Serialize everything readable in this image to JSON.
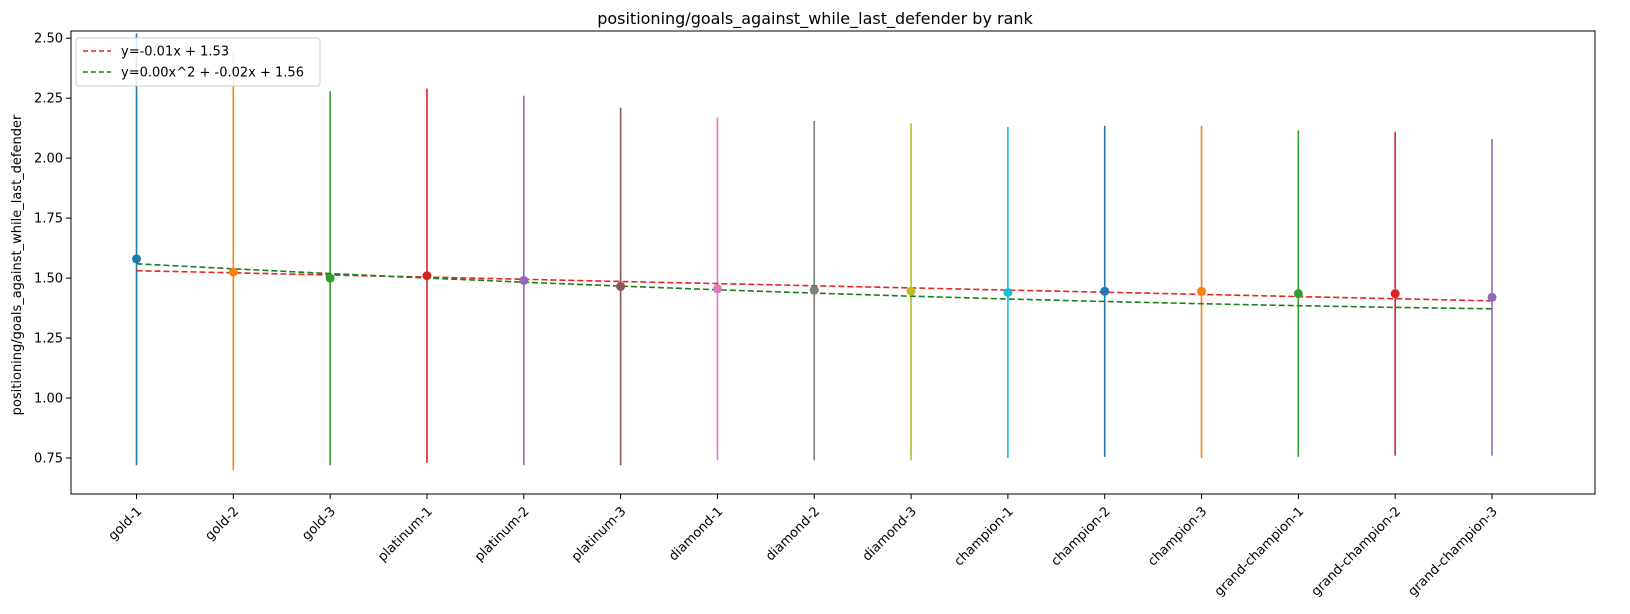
{
  "chart_data": {
    "type": "errorbar-scatter",
    "title": "positioning/goals_against_while_last_defender by rank",
    "xlabel": "",
    "ylabel": "positioning/goals_against_while_last_defender",
    "ylim": [
      0.6,
      2.53
    ],
    "yticks": [
      0.75,
      1.0,
      1.25,
      1.5,
      1.75,
      2.0,
      2.25,
      2.5
    ],
    "categories": [
      "gold-1",
      "gold-2",
      "gold-3",
      "platinum-1",
      "platinum-2",
      "platinum-3",
      "diamond-1",
      "diamond-2",
      "diamond-3",
      "champion-1",
      "champion-2",
      "champion-3",
      "grand-champion-1",
      "grand-champion-2",
      "grand-champion-3"
    ],
    "points": [
      {
        "category": "gold-1",
        "mean": 1.58,
        "low": 0.72,
        "high": 2.52,
        "color": "#1f77b4"
      },
      {
        "category": "gold-2",
        "mean": 1.525,
        "low": 0.7,
        "high": 2.45,
        "color": "#ff7f0e"
      },
      {
        "category": "gold-3",
        "mean": 1.5,
        "low": 0.72,
        "high": 2.28,
        "color": "#2ca02c"
      },
      {
        "category": "platinum-1",
        "mean": 1.51,
        "low": 0.73,
        "high": 2.29,
        "color": "#d62728"
      },
      {
        "category": "platinum-2",
        "mean": 1.49,
        "low": 0.72,
        "high": 2.26,
        "color": "#9467bd"
      },
      {
        "category": "platinum-3",
        "mean": 1.465,
        "low": 0.72,
        "high": 2.21,
        "color": "#8c564b"
      },
      {
        "category": "diamond-1",
        "mean": 1.455,
        "low": 0.74,
        "high": 2.17,
        "color": "#e377c2"
      },
      {
        "category": "diamond-2",
        "mean": 1.45,
        "low": 0.74,
        "high": 2.155,
        "color": "#7f7f7f"
      },
      {
        "category": "diamond-3",
        "mean": 1.445,
        "low": 0.74,
        "high": 2.145,
        "color": "#bcbd22"
      },
      {
        "category": "champion-1",
        "mean": 1.44,
        "low": 0.75,
        "high": 2.13,
        "color": "#17becf"
      },
      {
        "category": "champion-2",
        "mean": 1.445,
        "low": 0.755,
        "high": 2.135,
        "color": "#1f77b4"
      },
      {
        "category": "champion-3",
        "mean": 1.445,
        "low": 0.75,
        "high": 2.135,
        "color": "#ff7f0e"
      },
      {
        "category": "grand-champion-1",
        "mean": 1.435,
        "low": 0.755,
        "high": 2.115,
        "color": "#2ca02c"
      },
      {
        "category": "grand-champion-2",
        "mean": 1.435,
        "low": 0.76,
        "high": 2.11,
        "color": "#d62728"
      },
      {
        "category": "grand-champion-3",
        "mean": 1.42,
        "low": 0.76,
        "high": 2.08,
        "color": "#9467bd"
      }
    ],
    "fits": [
      {
        "name": "y=-0.01x + 1.53",
        "color": "#e8251f",
        "coef": [
          -0.009,
          1.531
        ]
      },
      {
        "name": "y=0.00x^2 + -0.02x + 1.56",
        "color": "#1a7f1a",
        "coef": [
          0.00058,
          -0.0215,
          1.5595
        ]
      }
    ],
    "legend_position": "top-left",
    "grid": false
  }
}
